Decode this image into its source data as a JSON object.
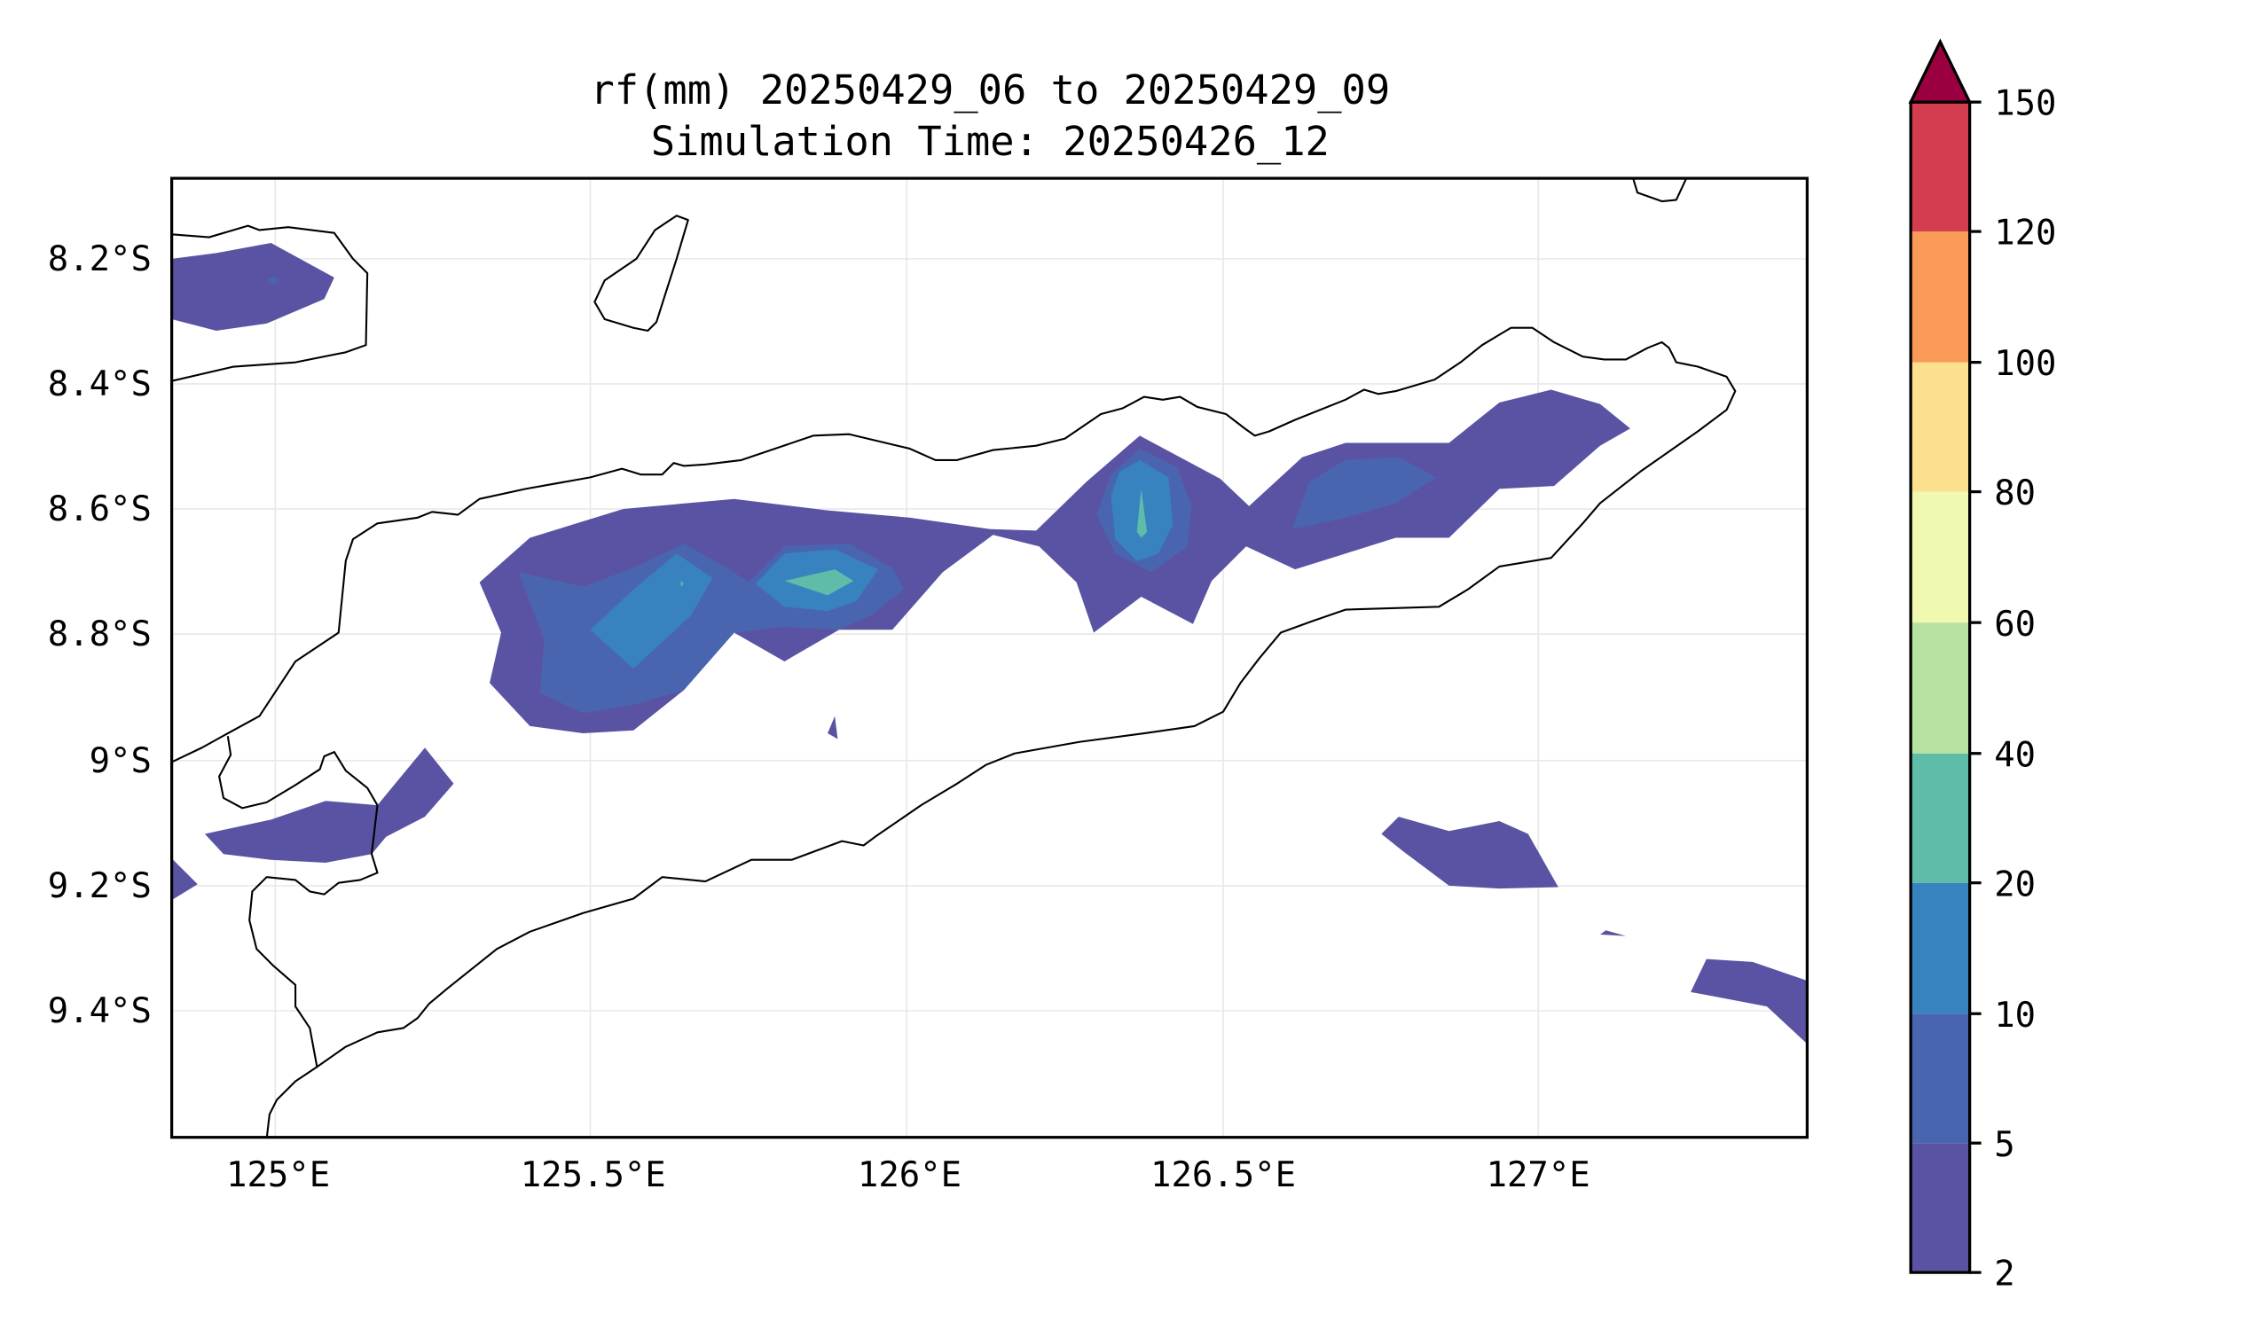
{
  "title": {
    "line1": "rf(mm) 20250429_06 to 20250429_09",
    "line2": "Simulation Time: 20250426_12"
  },
  "colors": {
    "c2_5": "#5a53a3",
    "c5_10": "#4a65af",
    "c10_20": "#3883bf",
    "c20_40": "#5ebca8",
    "c40_60": "#b7e1a0",
    "c60_80": "#f1f8b0",
    "c80_100": "#fbe08e",
    "c100_120": "#f99b57",
    "c120_150": "#d43c50",
    "c150_plus": "#9a0040"
  },
  "x_ticks": [
    "125°E",
    "125.5°E",
    "126°E",
    "126.5°E",
    "127°E"
  ],
  "y_ticks": [
    "8.2°S",
    "8.4°S",
    "8.6°S",
    "8.8°S",
    "9°S",
    "9.2°S",
    "9.4°S"
  ],
  "colorbar": {
    "levels": [
      "2",
      "5",
      "10",
      "20",
      "40",
      "60",
      "80",
      "100",
      "120",
      "150"
    ],
    "extend": "max"
  },
  "chart_data": {
    "type": "contour map",
    "variable": "rf(mm)",
    "lon_range": [
      124.83,
      127.43
    ],
    "lat_range": [
      -9.58,
      -8.08
    ],
    "levels": [
      2,
      5,
      10,
      20,
      40,
      60,
      80,
      100,
      120,
      150
    ],
    "grid": true,
    "colorbar_position": "right"
  }
}
